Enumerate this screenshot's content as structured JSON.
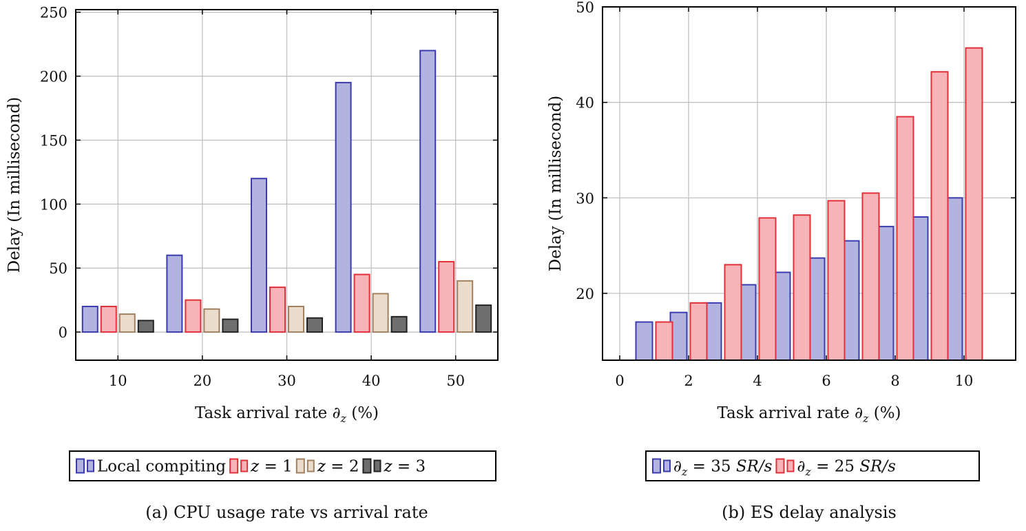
{
  "chart_data": [
    {
      "type": "bar",
      "caption": "(a) CPU usage rate vs arrival rate",
      "xlabel": "Task arrival rate ∂",
      "xlabel_sub": "z",
      "xlabel_tail": " (%)",
      "ylabel": "Delay (In millisecond)",
      "categories": [
        "10",
        "20",
        "30",
        "40",
        "50"
      ],
      "x": [
        10,
        20,
        30,
        40,
        50
      ],
      "xlim": [
        5,
        55
      ],
      "ylim": [
        -22,
        252
      ],
      "yticks": [
        0,
        50,
        100,
        150,
        200,
        250
      ],
      "grid": true,
      "series": [
        {
          "name": "Local compiting",
          "legend_text": "Local compiting",
          "fill": "#b3b3e0",
          "stroke": "#3b3bb0",
          "values": [
            20,
            60,
            120,
            195,
            220
          ]
        },
        {
          "name": "z = 1",
          "legend_text": "z = 1",
          "fill": "#f7b3b7",
          "stroke": "#e0303a",
          "values": [
            20,
            25,
            35,
            45,
            55
          ]
        },
        {
          "name": "z = 2",
          "legend_text": "z = 2",
          "fill": "#ecdccb",
          "stroke": "#a08060",
          "values": [
            14,
            18,
            20,
            30,
            40
          ]
        },
        {
          "name": "z = 3",
          "legend_text": "z = 3",
          "fill": "#6e6e6e",
          "stroke": "#222222",
          "values": [
            9,
            10,
            11,
            12,
            21
          ]
        }
      ]
    },
    {
      "type": "bar",
      "caption": "(b) ES delay analysis",
      "xlabel": "Task arrival rate ∂",
      "xlabel_sub": "z",
      "xlabel_tail": " (%)",
      "ylabel": "Delay (In millisecond)",
      "x": [
        1,
        2,
        3,
        4,
        5,
        6,
        7,
        8,
        9,
        10
      ],
      "xticks": [
        0,
        2,
        4,
        6,
        8,
        10
      ],
      "xlim": [
        -0.5,
        11.5
      ],
      "ylim": [
        13,
        50
      ],
      "yticks": [
        20,
        30,
        40,
        50
      ],
      "grid": true,
      "series": [
        {
          "name": "∂z = 35 SR/s",
          "legend_prefix": "∂",
          "legend_sub": "z",
          "legend_eq": " = 35 ",
          "legend_unit": "SR/s",
          "fill": "#b3b3e0",
          "stroke": "#3b3bb0",
          "values": [
            17,
            18,
            19,
            20.9,
            22.2,
            23.7,
            25.5,
            27,
            28,
            30
          ]
        },
        {
          "name": "∂z = 25 SR/s",
          "legend_prefix": "∂",
          "legend_sub": "z",
          "legend_eq": " = 25 ",
          "legend_unit": "SR/s",
          "fill": "#f7b3b7",
          "stroke": "#e0303a",
          "values": [
            17,
            19,
            23,
            27.9,
            28.2,
            29.7,
            30.5,
            38.5,
            43.2,
            45.7
          ]
        }
      ]
    }
  ]
}
